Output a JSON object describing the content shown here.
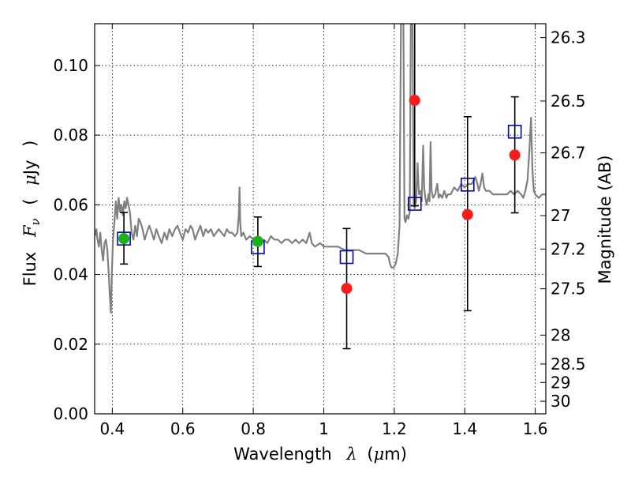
{
  "chart_data": {
    "type": "scatter",
    "title": "",
    "xlabel": {
      "prefix": "Wavelength",
      "symbol": "λ",
      "unit_open": "(",
      "unit_mu": "μ",
      "unit_rest": "m)"
    },
    "ylabel": {
      "prefix": "Flux",
      "symbol": "F",
      "subscript": "ν",
      "unit_open": "(",
      "unit_mu": "μ",
      "unit_rest": "Jy",
      "unit_close": ")"
    },
    "y2label": "Magnitude (AB)",
    "xlim": [
      0.35,
      1.63
    ],
    "ylim": [
      0.0,
      0.112
    ],
    "grid": true,
    "x_ticks": [
      0.4,
      0.6,
      0.8,
      1.0,
      1.2,
      1.4,
      1.6
    ],
    "x_tick_labels": [
      "0.4",
      "0.6",
      "0.8",
      "1",
      "1.2",
      "1.4",
      "1.6"
    ],
    "y_ticks": [
      0.0,
      0.02,
      0.04,
      0.06,
      0.08,
      0.1
    ],
    "y_tick_labels": [
      "0.00",
      "0.02",
      "0.04",
      "0.06",
      "0.08",
      "0.10"
    ],
    "mag_ticks": [
      {
        "label": "26.3",
        "flux": 0.108
      },
      {
        "label": "26.5",
        "flux": 0.0898
      },
      {
        "label": "26.7",
        "flux": 0.0749
      },
      {
        "label": "27",
        "flux": 0.0569
      },
      {
        "label": "27.2",
        "flux": 0.0473
      },
      {
        "label": "27.5",
        "flux": 0.0359
      },
      {
        "label": "28",
        "flux": 0.0226
      },
      {
        "label": "28.5",
        "flux": 0.0143
      },
      {
        "label": "29",
        "flux": 0.009
      },
      {
        "label": "30",
        "flux": 0.0036
      }
    ],
    "colors": {
      "template": "#808080",
      "model": "#0000cc",
      "detected": "#ff1a1a",
      "optical": "#17b317",
      "errorbar": "#000000"
    },
    "series": [
      {
        "type": "line",
        "points": [
          [
            0.35,
            0.051
          ],
          [
            0.355,
            0.053
          ],
          [
            0.358,
            0.05
          ],
          [
            0.362,
            0.048
          ],
          [
            0.366,
            0.052
          ],
          [
            0.37,
            0.047
          ],
          [
            0.374,
            0.044
          ],
          [
            0.378,
            0.049
          ],
          [
            0.382,
            0.05
          ],
          [
            0.386,
            0.047
          ],
          [
            0.39,
            0.04
          ],
          [
            0.393,
            0.034
          ],
          [
            0.396,
            0.029
          ],
          [
            0.399,
            0.041
          ],
          [
            0.402,
            0.05
          ],
          [
            0.406,
            0.055
          ],
          [
            0.41,
            0.061
          ],
          [
            0.414,
            0.056
          ],
          [
            0.418,
            0.062
          ],
          [
            0.422,
            0.058
          ],
          [
            0.426,
            0.06
          ],
          [
            0.43,
            0.057
          ],
          [
            0.434,
            0.061
          ],
          [
            0.438,
            0.059
          ],
          [
            0.442,
            0.062
          ],
          [
            0.446,
            0.06
          ],
          [
            0.45,
            0.058
          ],
          [
            0.455,
            0.052
          ],
          [
            0.46,
            0.05
          ],
          [
            0.465,
            0.054
          ],
          [
            0.47,
            0.051
          ],
          [
            0.475,
            0.056
          ],
          [
            0.48,
            0.055
          ],
          [
            0.486,
            0.053
          ],
          [
            0.492,
            0.05
          ],
          [
            0.498,
            0.052
          ],
          [
            0.505,
            0.054
          ],
          [
            0.512,
            0.052
          ],
          [
            0.518,
            0.05
          ],
          [
            0.525,
            0.053
          ],
          [
            0.532,
            0.051
          ],
          [
            0.54,
            0.049
          ],
          [
            0.548,
            0.052
          ],
          [
            0.555,
            0.05
          ],
          [
            0.562,
            0.053
          ],
          [
            0.57,
            0.051
          ],
          [
            0.578,
            0.053
          ],
          [
            0.585,
            0.054
          ],
          [
            0.592,
            0.052
          ],
          [
            0.6,
            0.05
          ],
          [
            0.608,
            0.053
          ],
          [
            0.615,
            0.052
          ],
          [
            0.622,
            0.054
          ],
          [
            0.628,
            0.053
          ],
          [
            0.635,
            0.05
          ],
          [
            0.642,
            0.052
          ],
          [
            0.65,
            0.054
          ],
          [
            0.658,
            0.051
          ],
          [
            0.665,
            0.053
          ],
          [
            0.672,
            0.052
          ],
          [
            0.68,
            0.053
          ],
          [
            0.688,
            0.051
          ],
          [
            0.695,
            0.052
          ],
          [
            0.702,
            0.053
          ],
          [
            0.71,
            0.052
          ],
          [
            0.718,
            0.051
          ],
          [
            0.725,
            0.053
          ],
          [
            0.732,
            0.052
          ],
          [
            0.74,
            0.052
          ],
          [
            0.748,
            0.051
          ],
          [
            0.755,
            0.052
          ],
          [
            0.759,
            0.057
          ],
          [
            0.761,
            0.065
          ],
          [
            0.763,
            0.055
          ],
          [
            0.766,
            0.051
          ],
          [
            0.772,
            0.052
          ],
          [
            0.78,
            0.05
          ],
          [
            0.79,
            0.051
          ],
          [
            0.8,
            0.05
          ],
          [
            0.81,
            0.05
          ],
          [
            0.82,
            0.049
          ],
          [
            0.83,
            0.05
          ],
          [
            0.84,
            0.049
          ],
          [
            0.85,
            0.051
          ],
          [
            0.86,
            0.05
          ],
          [
            0.87,
            0.05
          ],
          [
            0.88,
            0.049
          ],
          [
            0.89,
            0.05
          ],
          [
            0.9,
            0.05
          ],
          [
            0.91,
            0.049
          ],
          [
            0.92,
            0.05
          ],
          [
            0.93,
            0.049
          ],
          [
            0.94,
            0.05
          ],
          [
            0.95,
            0.049
          ],
          [
            0.96,
            0.052
          ],
          [
            0.966,
            0.049
          ],
          [
            0.975,
            0.048
          ],
          [
            0.99,
            0.049
          ],
          [
            1.0,
            0.048
          ],
          [
            1.02,
            0.048
          ],
          [
            1.04,
            0.048
          ],
          [
            1.06,
            0.047
          ],
          [
            1.08,
            0.047
          ],
          [
            1.1,
            0.047
          ],
          [
            1.12,
            0.046
          ],
          [
            1.14,
            0.046
          ],
          [
            1.16,
            0.046
          ],
          [
            1.175,
            0.046
          ],
          [
            1.184,
            0.045
          ],
          [
            1.188,
            0.043
          ],
          [
            1.192,
            0.042
          ],
          [
            1.198,
            0.042
          ],
          [
            1.204,
            0.043
          ],
          [
            1.21,
            0.046
          ],
          [
            1.215,
            0.054
          ],
          [
            1.219,
            0.112
          ],
          [
            1.226,
            0.112
          ],
          [
            1.229,
            0.056
          ],
          [
            1.232,
            0.055
          ],
          [
            1.236,
            0.057
          ],
          [
            1.24,
            0.056
          ],
          [
            1.244,
            0.058
          ],
          [
            1.247,
            0.112
          ],
          [
            1.252,
            0.112
          ],
          [
            1.255,
            0.06
          ],
          [
            1.258,
            0.059
          ],
          [
            1.262,
            0.061
          ],
          [
            1.266,
            0.072
          ],
          [
            1.27,
            0.063
          ],
          [
            1.274,
            0.064
          ],
          [
            1.278,
            0.061
          ],
          [
            1.282,
            0.077
          ],
          [
            1.285,
            0.065
          ],
          [
            1.288,
            0.062
          ],
          [
            1.292,
            0.06
          ],
          [
            1.297,
            0.063
          ],
          [
            1.3,
            0.061
          ],
          [
            1.303,
            0.078
          ],
          [
            1.306,
            0.064
          ],
          [
            1.31,
            0.062
          ],
          [
            1.316,
            0.063
          ],
          [
            1.322,
            0.066
          ],
          [
            1.326,
            0.062
          ],
          [
            1.33,
            0.063
          ],
          [
            1.336,
            0.062
          ],
          [
            1.342,
            0.064
          ],
          [
            1.348,
            0.062
          ],
          [
            1.352,
            0.063
          ],
          [
            1.36,
            0.063
          ],
          [
            1.37,
            0.065
          ],
          [
            1.38,
            0.064
          ],
          [
            1.39,
            0.066
          ],
          [
            1.4,
            0.065
          ],
          [
            1.41,
            0.066
          ],
          [
            1.42,
            0.066
          ],
          [
            1.43,
            0.068
          ],
          [
            1.436,
            0.066
          ],
          [
            1.44,
            0.064
          ],
          [
            1.445,
            0.066
          ],
          [
            1.45,
            0.069
          ],
          [
            1.455,
            0.065
          ],
          [
            1.46,
            0.064
          ],
          [
            1.47,
            0.064
          ],
          [
            1.48,
            0.063
          ],
          [
            1.49,
            0.063
          ],
          [
            1.5,
            0.063
          ],
          [
            1.51,
            0.063
          ],
          [
            1.52,
            0.063
          ],
          [
            1.53,
            0.064
          ],
          [
            1.54,
            0.063
          ],
          [
            1.55,
            0.064
          ],
          [
            1.56,
            0.063
          ],
          [
            1.566,
            0.062
          ],
          [
            1.572,
            0.064
          ],
          [
            1.578,
            0.067
          ],
          [
            1.583,
            0.075
          ],
          [
            1.588,
            0.085
          ],
          [
            1.592,
            0.07
          ],
          [
            1.596,
            0.064
          ],
          [
            1.6,
            0.063
          ],
          [
            1.61,
            0.062
          ],
          [
            1.62,
            0.063
          ],
          [
            1.63,
            0.063
          ]
        ]
      },
      {
        "type": "scatter-open-square",
        "points": [
          {
            "x": 0.433,
            "y": 0.0503
          },
          {
            "x": 0.813,
            "y": 0.0478
          },
          {
            "x": 1.065,
            "y": 0.045
          },
          {
            "x": 1.258,
            "y": 0.0603
          },
          {
            "x": 1.408,
            "y": 0.0658
          },
          {
            "x": 1.542,
            "y": 0.081
          }
        ]
      },
      {
        "type": "scatter-errorbar",
        "points": [
          {
            "x": 1.065,
            "y": 0.036,
            "ylo": 0.0187,
            "yhi": 0.0532
          },
          {
            "x": 1.258,
            "y": 0.09,
            "ylo": 0.0597,
            "yhi": 0.112
          },
          {
            "x": 1.408,
            "y": 0.0572,
            "ylo": 0.0296,
            "yhi": 0.0853
          },
          {
            "x": 1.542,
            "y": 0.0743,
            "ylo": 0.0577,
            "yhi": 0.091
          }
        ]
      },
      {
        "type": "scatter-errorbar",
        "points": [
          {
            "x": 0.433,
            "y": 0.0503,
            "ylo": 0.043,
            "yhi": 0.0578
          },
          {
            "x": 0.813,
            "y": 0.0495,
            "ylo": 0.0423,
            "yhi": 0.0565
          }
        ]
      }
    ]
  }
}
